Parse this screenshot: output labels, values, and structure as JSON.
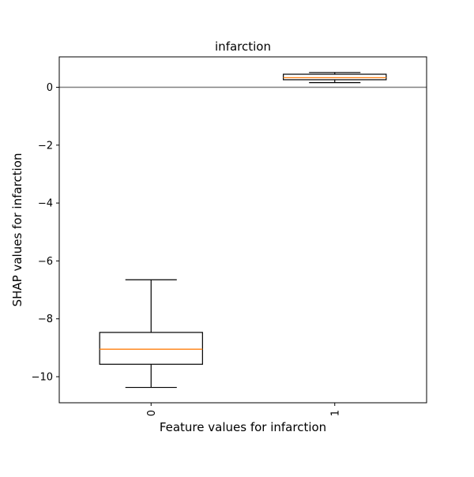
{
  "chart_data": {
    "type": "box",
    "title": "infarction",
    "xlabel": "Feature values for infarction",
    "ylabel": "SHAP values for infarction",
    "categories": [
      "0",
      "1"
    ],
    "boxes": [
      {
        "category": "0",
        "whisker_low": -10.37,
        "q1": -9.57,
        "median": -9.05,
        "q3": -8.47,
        "whisker_high": -6.65
      },
      {
        "category": "1",
        "whisker_low": 0.16,
        "q1": 0.26,
        "median": 0.33,
        "q3": 0.45,
        "whisker_high": 0.51
      }
    ],
    "ylim": [
      -10.9,
      1.05
    ],
    "yticks": [
      0,
      -2,
      -4,
      -6,
      -8,
      -10
    ],
    "ytick_labels": [
      "0",
      "−2",
      "−4",
      "−6",
      "−8",
      "−10"
    ],
    "reference_line_y": 0,
    "grid": false,
    "colors": {
      "box": "#000000",
      "median": "#ff7f0e",
      "reference_line": "#808080"
    }
  }
}
